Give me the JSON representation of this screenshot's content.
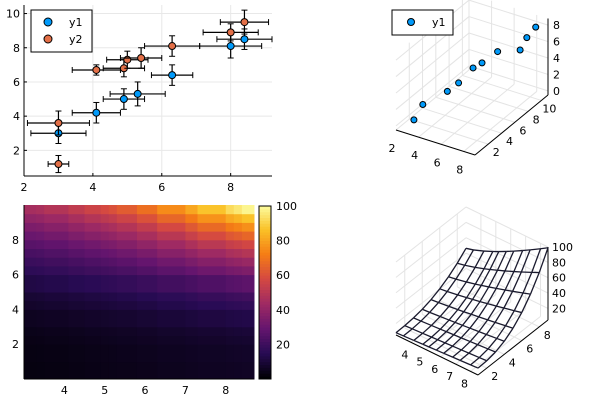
{
  "chart_data": [
    {
      "type": "scatter",
      "xlim": [
        2,
        9.2
      ],
      "ylim": [
        0.5,
        10.5
      ],
      "x_ticks": [
        2,
        4,
        6,
        8
      ],
      "y_ticks": [
        2,
        4,
        6,
        8,
        10
      ],
      "grid": true,
      "legend": "top-left",
      "series": [
        {
          "name": "y1",
          "color": "#009AFA",
          "x": [
            3.0,
            4.1,
            4.9,
            5.3,
            6.3,
            8.0,
            8.4
          ],
          "y": [
            3.0,
            4.2,
            5.0,
            5.3,
            6.4,
            8.1,
            8.5
          ],
          "xerr": [
            0.8,
            0.7,
            0.6,
            0.8,
            0.6,
            0.9,
            0.8
          ],
          "yerr": [
            0.6,
            0.6,
            0.6,
            0.7,
            0.6,
            0.7,
            0.6
          ]
        },
        {
          "name": "y2",
          "color": "#E36F47",
          "x": [
            3.0,
            3.0,
            4.1,
            4.9,
            5.0,
            5.4,
            6.3,
            8.0,
            8.4
          ],
          "y": [
            1.2,
            3.6,
            6.7,
            6.8,
            7.3,
            7.4,
            8.1,
            8.9,
            9.5
          ],
          "xerr": [
            0.3,
            0.9,
            0.7,
            0.6,
            0.6,
            0.6,
            0.8,
            0.8,
            0.7
          ],
          "yerr": [
            0.5,
            0.7,
            0.3,
            0.5,
            0.5,
            0.6,
            0.6,
            0.5,
            0.7
          ]
        }
      ]
    },
    {
      "type": "scatter3d",
      "legend": "top-left",
      "x_ticks": [
        2,
        4,
        6,
        8
      ],
      "y_ticks": [
        2,
        4,
        6,
        8,
        10
      ],
      "z_ticks": [
        0,
        2,
        4,
        6,
        8
      ],
      "series": [
        {
          "name": "y1",
          "color": "#009AFA",
          "x": [
            3.0,
            3.2,
            4.2,
            4.9,
            5.3,
            5.8,
            6.3,
            8.0,
            8.3,
            8.5
          ],
          "y": [
            1.0,
            2.0,
            4.0,
            4.5,
            6.0,
            6.5,
            8.0,
            8.5,
            9.0,
            10.0
          ],
          "z": [
            0.5,
            1.8,
            2.5,
            3.5,
            4.5,
            5.0,
            5.6,
            6.2,
            7.5,
            8.2
          ]
        }
      ]
    },
    {
      "type": "heatmap",
      "x_ticks": [
        4,
        5,
        6,
        7,
        8
      ],
      "y_ticks": [
        2,
        4,
        6,
        8
      ],
      "colorbar_ticks": [
        20,
        40,
        60,
        80,
        100
      ],
      "colormap": "inferno",
      "x": [
        3.0,
        3.3,
        3.5,
        4.1,
        4.5,
        4.9,
        5.1,
        5.3,
        5.8,
        6.3,
        7.0,
        7.3,
        8.0,
        8.2,
        8.4,
        8.7
      ],
      "y": [
        0.0,
        1.0,
        2.0,
        2.5,
        3.0,
        4.0,
        4.5,
        5.0,
        6.0,
        6.5,
        7.0,
        7.5,
        8.0,
        8.5,
        9.0,
        9.5,
        10.0
      ],
      "clim": [
        0,
        100
      ]
    },
    {
      "type": "wireframe",
      "x_ticks": [
        4,
        5,
        6,
        7,
        8
      ],
      "y_ticks": [
        2,
        4,
        6,
        8
      ],
      "z_ticks": [
        20,
        40,
        60,
        80,
        100
      ]
    }
  ]
}
